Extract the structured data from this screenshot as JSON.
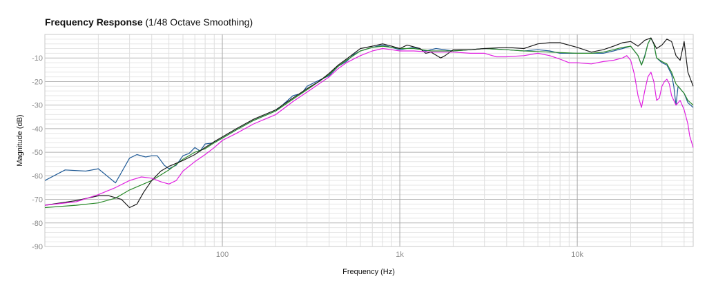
{
  "title": {
    "main": "Frequency Response",
    "sub": " (1/48 Octave Smoothing)"
  },
  "chart_data": {
    "type": "line",
    "title": "Frequency Response (1/48 Octave Smoothing)",
    "xlabel": "Frequency (Hz)",
    "ylabel": "Magnitude (dB)",
    "xscale": "log",
    "xlim": [
      10,
      45000
    ],
    "ylim": [
      -90,
      0
    ],
    "grid": true,
    "x_ticks": [
      {
        "value": 100,
        "label": "100"
      },
      {
        "value": 1000,
        "label": "1k"
      },
      {
        "value": 10000,
        "label": "10k"
      }
    ],
    "y_ticks": [
      {
        "value": -10,
        "label": "-10"
      },
      {
        "value": -20,
        "label": "-20"
      },
      {
        "value": -30,
        "label": "-30"
      },
      {
        "value": -40,
        "label": "-40"
      },
      {
        "value": -50,
        "label": "-50"
      },
      {
        "value": -60,
        "label": "-60"
      },
      {
        "value": -70,
        "label": "-70"
      },
      {
        "value": -80,
        "label": "-80"
      },
      {
        "value": -90,
        "label": "-90"
      }
    ],
    "series": [
      {
        "name": "blue",
        "color": "#1f5a96",
        "points": [
          [
            10,
            -62
          ],
          [
            13,
            -57.5
          ],
          [
            17,
            -58
          ],
          [
            20,
            -57
          ],
          [
            25,
            -63
          ],
          [
            30,
            -52.5
          ],
          [
            33,
            -51
          ],
          [
            37,
            -52
          ],
          [
            40,
            -51.5
          ],
          [
            43,
            -51.5
          ],
          [
            47,
            -55.5
          ],
          [
            50,
            -57
          ],
          [
            55,
            -55.5
          ],
          [
            60,
            -51.5
          ],
          [
            65,
            -50.5
          ],
          [
            70,
            -48
          ],
          [
            75,
            -49.5
          ],
          [
            80,
            -46.5
          ],
          [
            90,
            -46
          ],
          [
            100,
            -44
          ],
          [
            120,
            -40.5
          ],
          [
            150,
            -36.5
          ],
          [
            200,
            -32.5
          ],
          [
            250,
            -26
          ],
          [
            280,
            -25
          ],
          [
            300,
            -22
          ],
          [
            350,
            -19.5
          ],
          [
            400,
            -17.5
          ],
          [
            450,
            -13.5
          ],
          [
            500,
            -11.5
          ],
          [
            550,
            -8.5
          ],
          [
            600,
            -7
          ],
          [
            700,
            -5.5
          ],
          [
            800,
            -4.5
          ],
          [
            900,
            -5.5
          ],
          [
            1000,
            -6.5
          ],
          [
            1200,
            -5.5
          ],
          [
            1400,
            -7
          ],
          [
            1600,
            -6
          ],
          [
            2000,
            -7
          ],
          [
            2500,
            -6.5
          ],
          [
            3000,
            -6
          ],
          [
            4000,
            -6.5
          ],
          [
            5000,
            -7
          ],
          [
            6000,
            -6.5
          ],
          [
            7000,
            -7
          ],
          [
            8000,
            -8
          ],
          [
            10000,
            -8
          ],
          [
            12000,
            -8
          ],
          [
            14000,
            -8
          ],
          [
            16000,
            -7
          ],
          [
            18000,
            -6
          ],
          [
            20000,
            -5
          ],
          [
            22000,
            -9
          ],
          [
            23000,
            -13
          ],
          [
            24000,
            -9
          ],
          [
            25000,
            -4
          ],
          [
            26000,
            -1.5
          ],
          [
            27000,
            -4
          ],
          [
            28000,
            -10
          ],
          [
            30000,
            -12
          ],
          [
            32000,
            -13
          ],
          [
            34000,
            -17
          ],
          [
            35000,
            -22
          ],
          [
            36000,
            -30
          ],
          [
            37000,
            -22
          ],
          [
            38000,
            -23
          ],
          [
            40000,
            -25
          ],
          [
            42000,
            -29
          ],
          [
            45000,
            -31
          ]
        ]
      },
      {
        "name": "green",
        "color": "#2a8a2a",
        "points": [
          [
            10,
            -73.5
          ],
          [
            15,
            -72.5
          ],
          [
            20,
            -71.5
          ],
          [
            25,
            -69.5
          ],
          [
            30,
            -66
          ],
          [
            40,
            -62
          ],
          [
            50,
            -57.5
          ],
          [
            60,
            -53
          ],
          [
            70,
            -50
          ],
          [
            80,
            -48.5
          ],
          [
            90,
            -46
          ],
          [
            100,
            -44
          ],
          [
            120,
            -40.5
          ],
          [
            150,
            -36.5
          ],
          [
            200,
            -32.5
          ],
          [
            250,
            -27.5
          ],
          [
            300,
            -23.5
          ],
          [
            350,
            -20
          ],
          [
            400,
            -17
          ],
          [
            450,
            -13.5
          ],
          [
            500,
            -11
          ],
          [
            600,
            -7
          ],
          [
            700,
            -5.5
          ],
          [
            800,
            -5
          ],
          [
            900,
            -5.5
          ],
          [
            1000,
            -6
          ],
          [
            1200,
            -6
          ],
          [
            1500,
            -7
          ],
          [
            2000,
            -7
          ],
          [
            2500,
            -6.5
          ],
          [
            3000,
            -6
          ],
          [
            4000,
            -6.5
          ],
          [
            5000,
            -7
          ],
          [
            7000,
            -7.5
          ],
          [
            10000,
            -8
          ],
          [
            12000,
            -8
          ],
          [
            14000,
            -7.5
          ],
          [
            16000,
            -6.5
          ],
          [
            18000,
            -5.5
          ],
          [
            20000,
            -5
          ],
          [
            22000,
            -9
          ],
          [
            23000,
            -13
          ],
          [
            24000,
            -9.5
          ],
          [
            25000,
            -4
          ],
          [
            26000,
            -1.5
          ],
          [
            27000,
            -4
          ],
          [
            28000,
            -10
          ],
          [
            30000,
            -11.5
          ],
          [
            32000,
            -12.5
          ],
          [
            34000,
            -16
          ],
          [
            36000,
            -21
          ],
          [
            38000,
            -23
          ],
          [
            40000,
            -25
          ],
          [
            42000,
            -28
          ],
          [
            45000,
            -30
          ]
        ]
      },
      {
        "name": "black",
        "color": "#1a1a1a",
        "points": [
          [
            10,
            -72.5
          ],
          [
            15,
            -70.5
          ],
          [
            20,
            -68.5
          ],
          [
            23,
            -68.5
          ],
          [
            27,
            -70
          ],
          [
            30,
            -73.5
          ],
          [
            33,
            -72
          ],
          [
            36,
            -67
          ],
          [
            40,
            -62
          ],
          [
            45,
            -58
          ],
          [
            50,
            -56
          ],
          [
            60,
            -53.5
          ],
          [
            70,
            -51
          ],
          [
            80,
            -48
          ],
          [
            90,
            -45.5
          ],
          [
            100,
            -43.5
          ],
          [
            120,
            -40
          ],
          [
            150,
            -36
          ],
          [
            200,
            -32
          ],
          [
            250,
            -27
          ],
          [
            300,
            -23
          ],
          [
            350,
            -20
          ],
          [
            400,
            -16.5
          ],
          [
            450,
            -13
          ],
          [
            500,
            -10.5
          ],
          [
            600,
            -6
          ],
          [
            700,
            -5
          ],
          [
            800,
            -4
          ],
          [
            900,
            -5
          ],
          [
            1000,
            -6
          ],
          [
            1100,
            -4.5
          ],
          [
            1300,
            -6
          ],
          [
            1400,
            -8
          ],
          [
            1500,
            -7.5
          ],
          [
            1700,
            -10
          ],
          [
            1800,
            -9
          ],
          [
            2000,
            -6.5
          ],
          [
            2500,
            -6.5
          ],
          [
            3000,
            -6
          ],
          [
            4000,
            -5.5
          ],
          [
            5000,
            -6
          ],
          [
            6000,
            -4
          ],
          [
            7000,
            -3.5
          ],
          [
            8000,
            -3.5
          ],
          [
            10000,
            -5.5
          ],
          [
            12000,
            -7.5
          ],
          [
            14000,
            -6.5
          ],
          [
            16000,
            -5
          ],
          [
            18000,
            -3.5
          ],
          [
            20000,
            -3
          ],
          [
            22000,
            -5
          ],
          [
            24000,
            -2.5
          ],
          [
            26000,
            -1.5
          ],
          [
            28000,
            -6
          ],
          [
            30000,
            -4.5
          ],
          [
            32000,
            -2
          ],
          [
            34000,
            -3
          ],
          [
            36000,
            -9
          ],
          [
            38000,
            -11
          ],
          [
            40000,
            -3
          ],
          [
            42000,
            -16
          ],
          [
            45000,
            -22
          ]
        ]
      },
      {
        "name": "magenta",
        "color": "#e020e0",
        "points": [
          [
            10,
            -72.5
          ],
          [
            15,
            -71
          ],
          [
            20,
            -68
          ],
          [
            25,
            -65
          ],
          [
            30,
            -62
          ],
          [
            35,
            -60.5
          ],
          [
            40,
            -61
          ],
          [
            45,
            -62.5
          ],
          [
            50,
            -63.5
          ],
          [
            55,
            -62
          ],
          [
            60,
            -58
          ],
          [
            70,
            -54
          ],
          [
            80,
            -51
          ],
          [
            90,
            -48
          ],
          [
            100,
            -45
          ],
          [
            120,
            -42
          ],
          [
            150,
            -38
          ],
          [
            200,
            -34
          ],
          [
            250,
            -28.5
          ],
          [
            300,
            -24.5
          ],
          [
            350,
            -21
          ],
          [
            400,
            -18
          ],
          [
            450,
            -14.5
          ],
          [
            500,
            -12
          ],
          [
            600,
            -9
          ],
          [
            700,
            -7
          ],
          [
            800,
            -6
          ],
          [
            900,
            -6.5
          ],
          [
            1000,
            -7
          ],
          [
            1200,
            -7
          ],
          [
            1500,
            -7.5
          ],
          [
            2000,
            -7.5
          ],
          [
            2500,
            -8
          ],
          [
            3000,
            -8
          ],
          [
            3500,
            -9.5
          ],
          [
            4000,
            -9.5
          ],
          [
            5000,
            -9
          ],
          [
            6000,
            -8
          ],
          [
            7000,
            -9
          ],
          [
            8000,
            -10.5
          ],
          [
            9000,
            -12
          ],
          [
            10000,
            -12
          ],
          [
            12000,
            -12.5
          ],
          [
            14000,
            -11.5
          ],
          [
            16000,
            -11
          ],
          [
            18000,
            -10
          ],
          [
            19000,
            -9
          ],
          [
            20000,
            -11
          ],
          [
            21000,
            -17
          ],
          [
            22000,
            -26
          ],
          [
            23000,
            -31
          ],
          [
            24000,
            -24
          ],
          [
            25000,
            -18
          ],
          [
            26000,
            -16
          ],
          [
            27000,
            -20
          ],
          [
            28000,
            -28
          ],
          [
            29000,
            -27
          ],
          [
            30000,
            -22
          ],
          [
            31000,
            -20
          ],
          [
            32000,
            -19
          ],
          [
            33000,
            -21
          ],
          [
            34000,
            -26
          ],
          [
            36000,
            -30
          ],
          [
            38000,
            -28
          ],
          [
            40000,
            -32
          ],
          [
            42000,
            -38
          ],
          [
            43000,
            -43
          ],
          [
            45000,
            -48
          ]
        ]
      }
    ]
  }
}
